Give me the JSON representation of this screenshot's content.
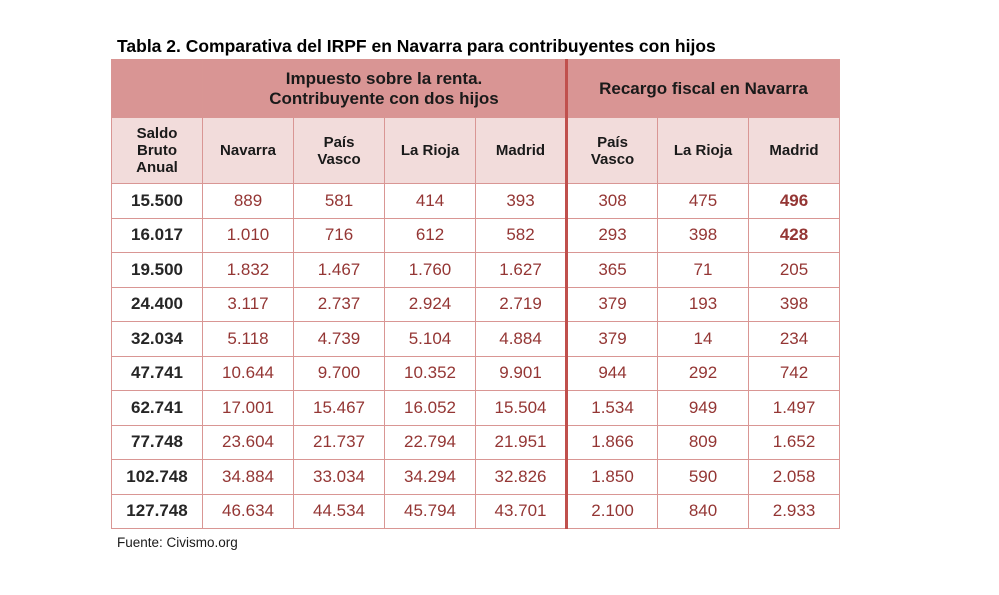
{
  "title": "Tabla 2. Comparativa del IRPF en Navarra para contribuyentes con hijos",
  "group_headers": {
    "impuesto_line1": "Impuesto sobre la renta.",
    "impuesto_line2": "Contribuyente con dos hijos",
    "recargo": "Recargo fiscal en Navarra"
  },
  "column_headers": {
    "saldo_line1": "Saldo",
    "saldo_line2": "Bruto",
    "saldo_line3": "Anual",
    "navarra": "Navarra",
    "pais_vasco_line1": "País",
    "pais_vasco_line2": "Vasco",
    "la_rioja": "La Rioja",
    "madrid": "Madrid",
    "recargo_pais_vasco_line1": "País",
    "recargo_pais_vasco_line2": "Vasco",
    "recargo_la_rioja": "La Rioja",
    "recargo_madrid": "Madrid"
  },
  "rows": [
    [
      "15.500",
      "889",
      "581",
      "414",
      "393",
      "308",
      "475",
      "496"
    ],
    [
      "16.017",
      "1.010",
      "716",
      "612",
      "582",
      "293",
      "398",
      "428"
    ],
    [
      "19.500",
      "1.832",
      "1.467",
      "1.760",
      "1.627",
      "365",
      "71",
      "205"
    ],
    [
      "24.400",
      "3.117",
      "2.737",
      "2.924",
      "2.719",
      "379",
      "193",
      "398"
    ],
    [
      "32.034",
      "5.118",
      "4.739",
      "5.104",
      "4.884",
      "379",
      "14",
      "234"
    ],
    [
      "47.741",
      "10.644",
      "9.700",
      "10.352",
      "9.901",
      "944",
      "292",
      "742"
    ],
    [
      "62.741",
      "17.001",
      "15.467",
      "16.052",
      "15.504",
      "1.534",
      "949",
      "1.497"
    ],
    [
      "77.748",
      "23.604",
      "21.737",
      "22.794",
      "21.951",
      "1.866",
      "809",
      "1.652"
    ],
    [
      "102.748",
      "34.884",
      "33.034",
      "34.294",
      "32.826",
      "1.850",
      "590",
      "2.058"
    ],
    [
      "127.748",
      "46.634",
      "44.534",
      "45.794",
      "43.701",
      "2.100",
      "840",
      "2.933"
    ]
  ],
  "source": "Fuente: Civismo.org",
  "colors": {
    "header_dark": "#d99594",
    "header_light": "#f2dcdb",
    "value_text": "#943634",
    "separator": "#c0504d"
  }
}
